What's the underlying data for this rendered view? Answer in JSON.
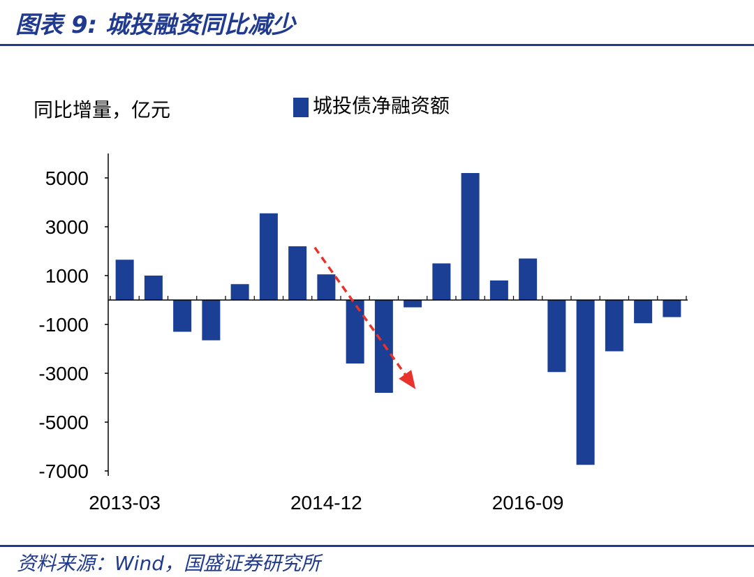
{
  "header": {
    "figure_title": "图表 9:  城投融资同比减少"
  },
  "footer": {
    "source": "资料来源：Wind，国盛证券研究所"
  },
  "colors": {
    "accent": "#1f3a8f",
    "bar": "#1a3f94",
    "arrow": "#e8322b"
  },
  "chart_data": {
    "type": "bar",
    "title": "",
    "ylabel": "同比增量，亿元",
    "xlabel": "",
    "legend": {
      "placement": "top",
      "entries": [
        "城投债净融资额"
      ]
    },
    "grid": false,
    "ylim": [
      -7000,
      6000
    ],
    "yticks": [
      "5000",
      "3000",
      "1000",
      "-1000",
      "-3000",
      "-5000",
      "-7000"
    ],
    "ytick_values": [
      5000,
      3000,
      1000,
      -1000,
      -3000,
      -5000,
      -7000
    ],
    "xtick_labels": [
      "2013-03",
      "2014-12",
      "2016-09"
    ],
    "xtick_positions": [
      0,
      7,
      14
    ],
    "series": [
      {
        "name": "城投债净融资额",
        "values": [
          1650,
          1000,
          -1300,
          -1650,
          650,
          3550,
          2200,
          1050,
          -2600,
          -3800,
          -300,
          1500,
          5200,
          800,
          1700,
          -2950,
          -6750,
          -2100,
          -950,
          -700
        ]
      }
    ],
    "annotations": [
      {
        "type": "arrow",
        "style": "dashed",
        "from_bar": 6.6,
        "from_value": 2150,
        "to_bar": 10.1,
        "to_value": -3650
      }
    ]
  }
}
